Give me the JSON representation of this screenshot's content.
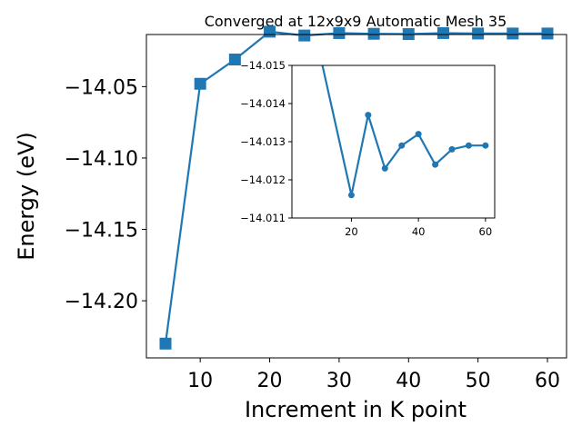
{
  "chart_data": [
    {
      "type": "line",
      "title": "Converged at 12x9x9 Automatic Mesh 35",
      "xlabel": "Increment in K point",
      "ylabel": "Energy (eV)",
      "x": [
        5,
        10,
        15,
        20,
        25,
        30,
        35,
        40,
        45,
        50,
        55,
        60
      ],
      "series": [
        {
          "values": [
            -14.23,
            -14.048,
            -14.031,
            -14.0115,
            -14.0142,
            -14.0125,
            -14.013,
            -14.0132,
            -14.0125,
            -14.0128,
            -14.0128,
            -14.0128
          ]
        }
      ],
      "xlim": [
        2.25,
        62.75
      ],
      "ylim": [
        -14.24,
        -14.0135
      ],
      "xticks": [
        10,
        20,
        30,
        40,
        50,
        60
      ],
      "xtick_labels": [
        "10",
        "20",
        "30",
        "40",
        "50",
        "60"
      ],
      "yticks": [
        -14.05,
        -14.1,
        -14.15,
        -14.2
      ],
      "ytick_labels": [
        "−14.05",
        "−14.10",
        "−14.15",
        "−14.20"
      ],
      "marker": "square",
      "color": "#1f77b4",
      "grid": false
    },
    {
      "type": "line",
      "title": "",
      "x": [
        5,
        20,
        25,
        30,
        35,
        40,
        45,
        50,
        55,
        60
      ],
      "series": [
        {
          "values": [
            -14.0175,
            -14.0116,
            -14.0137,
            -14.0123,
            -14.0129,
            -14.0132,
            -14.0124,
            -14.0128,
            -14.0129,
            -14.0129
          ]
        }
      ],
      "xlim": [
        2.25,
        62.75
      ],
      "ylim": [
        -14.011,
        -14.015
      ],
      "xticks": [
        20,
        40,
        60
      ],
      "xtick_labels": [
        "20",
        "40",
        "60"
      ],
      "yticks": [
        -14.011,
        -14.012,
        -14.013,
        -14.014,
        -14.015
      ],
      "ytick_labels": [
        "−14.011",
        "−14.012",
        "−14.013",
        "−14.014",
        "−14.015"
      ],
      "marker": "circle",
      "color": "#1f77b4",
      "grid": false
    }
  ]
}
